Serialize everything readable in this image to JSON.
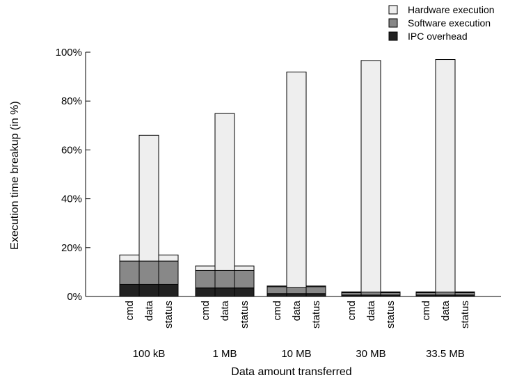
{
  "chart_data": {
    "type": "bar",
    "stacked": true,
    "title": "",
    "xlabel": "Data amount transferred",
    "ylabel": "Execution time breakup (in %)",
    "ylim": [
      0,
      100
    ],
    "yticks": [
      0,
      20,
      40,
      60,
      80,
      100
    ],
    "ytick_labels": [
      "0%",
      "20%",
      "40%",
      "60%",
      "80%",
      "100%"
    ],
    "groups": [
      "100 kB",
      "1 MB",
      "10 MB",
      "30 MB",
      "33.5 MB"
    ],
    "bar_labels": [
      "cmd",
      "data",
      "status"
    ],
    "grid": false,
    "legend": {
      "position": "top-right",
      "entries": [
        "Hardware execution",
        "Software execution",
        "IPC overhead"
      ]
    },
    "series": [
      {
        "name": "IPC overhead",
        "color": "#222222",
        "values": [
          [
            5,
            5,
            5
          ],
          [
            3.5,
            3.5,
            3.5
          ],
          [
            1.2,
            1.2,
            1.2
          ],
          [
            0.6,
            0.6,
            0.6
          ],
          [
            0.6,
            0.6,
            0.6
          ]
        ]
      },
      {
        "name": "Software execution",
        "color": "#888888",
        "values": [
          [
            9.5,
            9.5,
            9.5
          ],
          [
            7.2,
            7.2,
            7.2
          ],
          [
            2.8,
            2.4,
            2.8
          ],
          [
            1.0,
            1.2,
            1.0
          ],
          [
            1.0,
            1.2,
            1.0
          ]
        ]
      },
      {
        "name": "Hardware execution",
        "color": "#eeeeee",
        "values": [
          [
            2.5,
            51.5,
            2.5
          ],
          [
            1.8,
            64.2,
            1.8
          ],
          [
            0.3,
            88.3,
            0.3
          ],
          [
            0.3,
            94.8,
            0.3
          ],
          [
            0.3,
            95.2,
            0.3
          ]
        ]
      }
    ]
  }
}
